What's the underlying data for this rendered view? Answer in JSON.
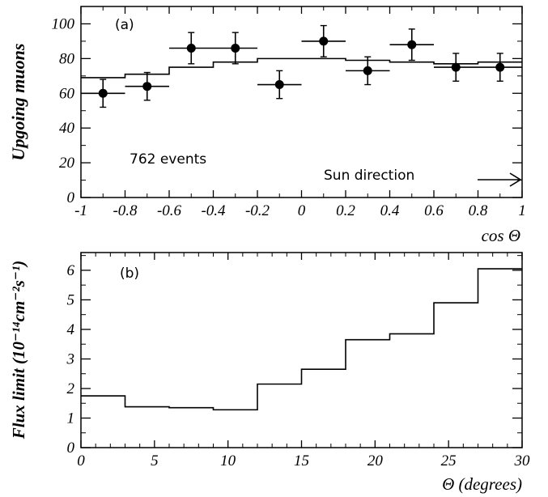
{
  "chart_data": [
    {
      "type": "scatter",
      "panel_label": "(a)",
      "xlabel": "cos Θ",
      "ylabel": "Upgoing muons",
      "xlim": [
        -1,
        1
      ],
      "ylim": [
        0,
        110
      ],
      "x_ticks": [
        "-1",
        "-0.8",
        "-0.6",
        "-0.4",
        "-0.2",
        "0",
        "0.2",
        "0.4",
        "0.6",
        "0.8",
        "1"
      ],
      "y_ticks": [
        "0",
        "20",
        "40",
        "60",
        "80",
        "100"
      ],
      "annotations": {
        "events": "762 events",
        "sun_direction": "Sun direction"
      },
      "data_points": {
        "x": [
          -0.9,
          -0.7,
          -0.5,
          -0.3,
          -0.1,
          0.1,
          0.3,
          0.5,
          0.7,
          0.9
        ],
        "y": [
          60,
          64,
          86,
          86,
          65,
          90,
          73,
          88,
          75,
          75
        ],
        "x_err": [
          0.1,
          0.1,
          0.1,
          0.1,
          0.1,
          0.1,
          0.1,
          0.1,
          0.1,
          0.1
        ],
        "y_err": [
          8,
          8,
          9,
          9,
          8,
          9,
          8,
          9,
          8,
          8
        ]
      },
      "expectation_histogram": {
        "bin_edges": [
          -1,
          -0.8,
          -0.6,
          -0.4,
          -0.2,
          0,
          0.2,
          0.4,
          0.6,
          0.8,
          1
        ],
        "values": [
          69,
          71,
          75,
          78,
          80,
          80,
          79,
          78,
          77,
          78
        ]
      }
    },
    {
      "type": "line",
      "panel_label": "(b)",
      "xlabel": "Θ (degrees)",
      "ylabel": "Flux limit (10⁻¹⁴cm⁻²s⁻¹)",
      "xlim": [
        0,
        30
      ],
      "ylim": [
        0,
        6.6
      ],
      "x_ticks": [
        "0",
        "5",
        "10",
        "15",
        "20",
        "25",
        "30"
      ],
      "y_ticks": [
        "0",
        "1",
        "2",
        "3",
        "4",
        "5",
        "6"
      ],
      "step_histogram": {
        "bin_edges": [
          0,
          3,
          6,
          9,
          12,
          15,
          18,
          21,
          24,
          27,
          30
        ],
        "values": [
          1.75,
          1.38,
          1.35,
          1.28,
          2.15,
          2.65,
          3.65,
          3.85,
          4.9,
          6.05
        ]
      }
    }
  ]
}
